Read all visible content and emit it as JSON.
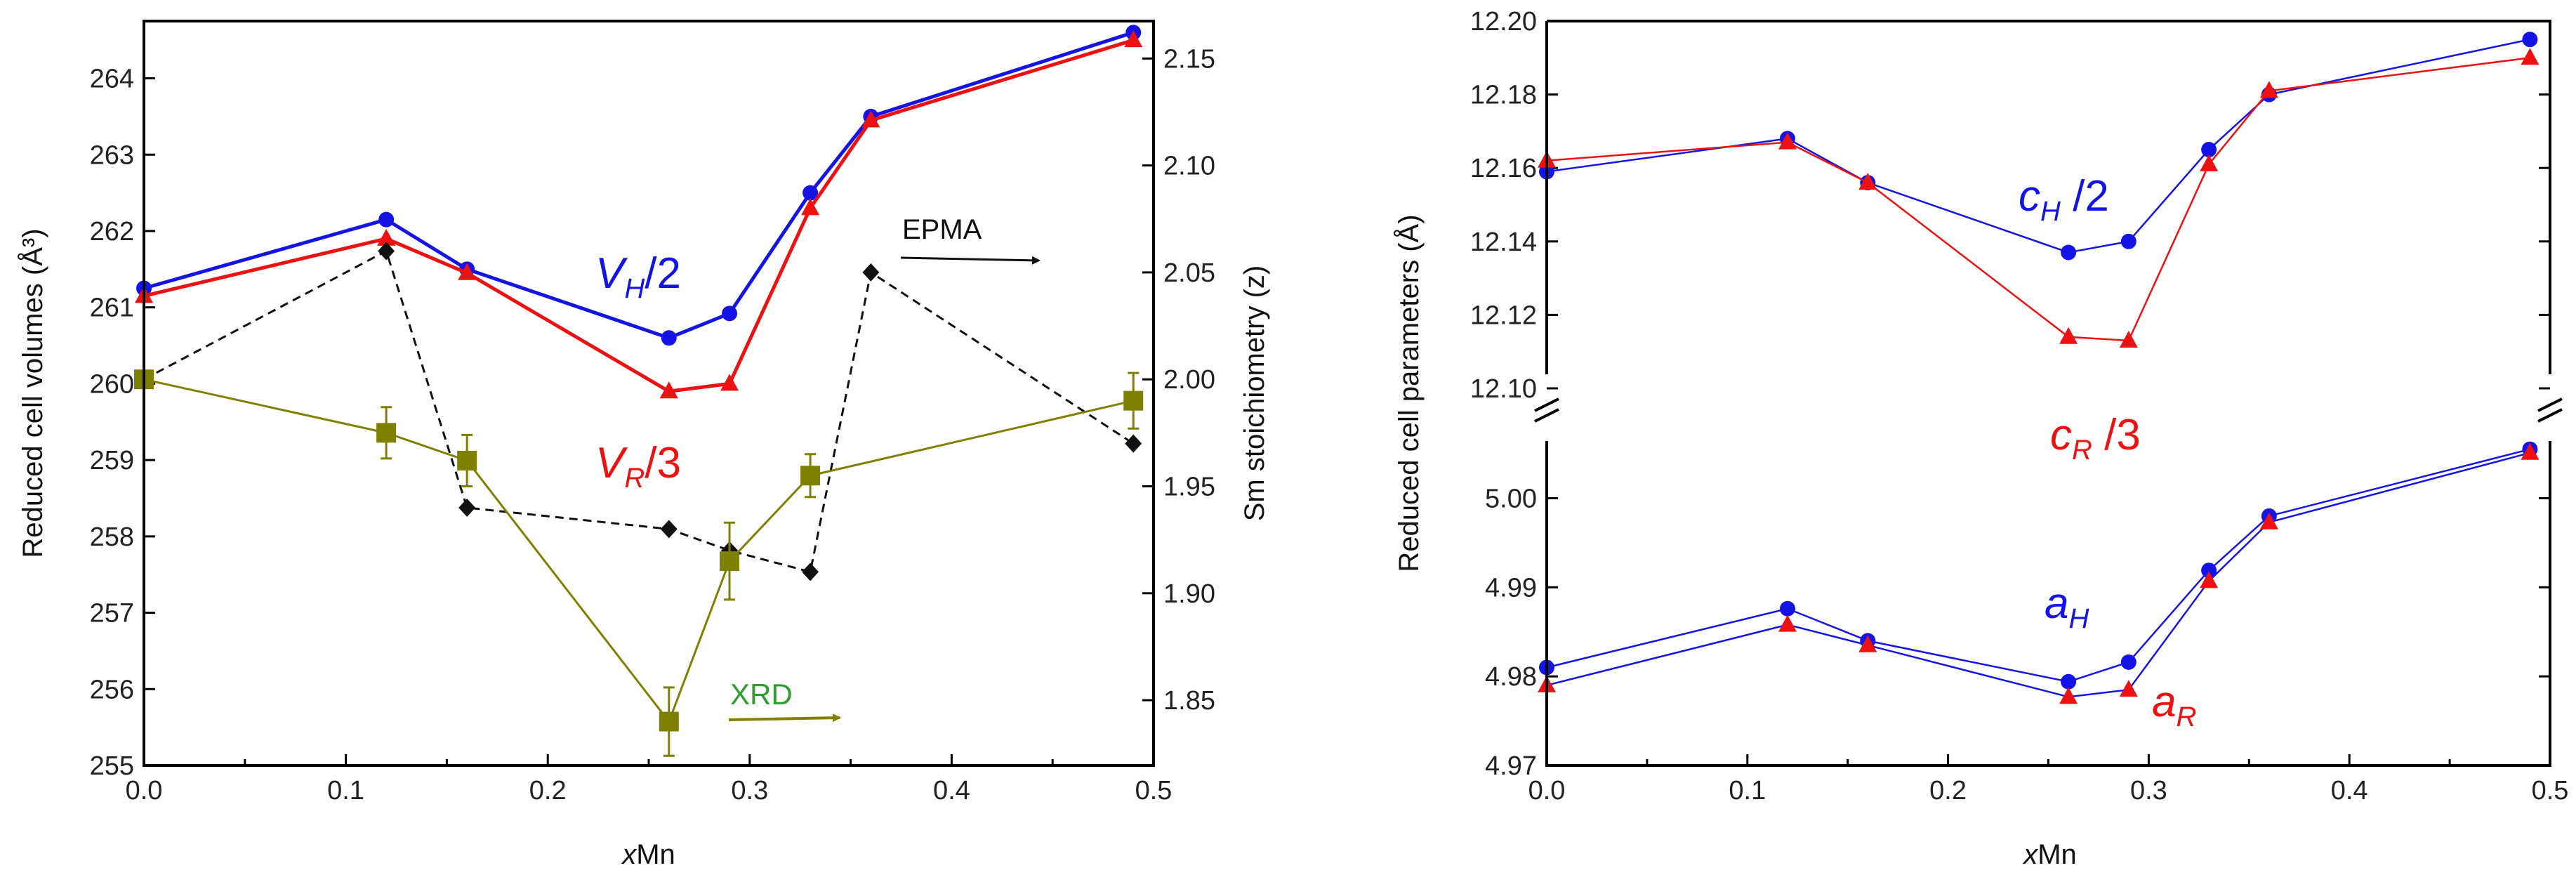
{
  "chart_data": [
    {
      "type": "line",
      "title": "",
      "xlabel": "xMn",
      "xlabel_italic": "x",
      "xlabel_rest": "Mn",
      "ylabel": "Reduced cell volumes (Å³)",
      "ylabel2": "Sm stoichiometry (z)",
      "xlim": [
        0,
        0.5
      ],
      "ylim": [
        255,
        264.75
      ],
      "ylim2": [
        1.8195,
        2.1675
      ],
      "xticks": [
        "0.0",
        "0.1",
        "0.2",
        "0.3",
        "0.4",
        "0.5"
      ],
      "yticks": [
        "255",
        "256",
        "257",
        "258",
        "259",
        "260",
        "261",
        "262",
        "263",
        "264"
      ],
      "yticks2": [
        "1.85",
        "1.90",
        "1.95",
        "2.00",
        "2.05",
        "2.10",
        "2.15"
      ],
      "series": [
        {
          "name": "V_H/2",
          "color": "#1414e6",
          "marker": "circle",
          "axis": "left",
          "x": [
            0,
            0.12,
            0.16,
            0.26,
            0.29,
            0.33,
            0.36,
            0.49
          ],
          "y": [
            261.25,
            262.15,
            261.5,
            260.6,
            260.92,
            262.5,
            263.5,
            264.6
          ]
        },
        {
          "name": "V_R/3",
          "color": "#ee1111",
          "marker": "triangle",
          "axis": "left",
          "x": [
            0,
            0.12,
            0.16,
            0.26,
            0.29,
            0.33,
            0.36,
            0.49
          ],
          "y": [
            261.15,
            261.9,
            261.45,
            259.9,
            260.0,
            262.3,
            263.45,
            264.5
          ]
        },
        {
          "name": "EPMA",
          "color": "#111111",
          "marker": "diamond",
          "dashed": true,
          "axis": "right",
          "x": [
            0,
            0.12,
            0.16,
            0.26,
            0.29,
            0.33,
            0.36,
            0.49
          ],
          "y": [
            2.0,
            2.06,
            1.94,
            1.93,
            1.92,
            1.91,
            2.05,
            1.97
          ]
        },
        {
          "name": "XRD",
          "color": "#808000",
          "marker": "square",
          "axis": "right",
          "x": [
            0,
            0.12,
            0.16,
            0.26,
            0.29,
            0.33,
            0.49
          ],
          "y": [
            2.0,
            1.975,
            1.962,
            1.84,
            1.915,
            1.955,
            1.99
          ],
          "err": [
            0,
            0.012,
            0.012,
            0.016,
            0.018,
            0.01,
            0.013
          ]
        }
      ],
      "annotations": [
        {
          "text": "V",
          "sub": "H",
          "suffix": "/2",
          "color": "#1414e6"
        },
        {
          "text": "V",
          "sub": "R",
          "suffix": "/3",
          "color": "#ee1111"
        },
        {
          "text": "EPMA",
          "color": "#111111"
        },
        {
          "text": "XRD",
          "color": "#2e9e2e"
        }
      ]
    },
    {
      "type": "line",
      "title": "",
      "xlabel": "xMn",
      "xlabel_italic": "x",
      "xlabel_rest": "Mn",
      "ylabel": "Reduced cell parameters (Å)",
      "xlim": [
        0,
        0.5
      ],
      "ylim_upper": [
        12.1,
        12.2
      ],
      "ylim_lower": [
        4.97,
        5.008
      ],
      "xticks": [
        "0.0",
        "0.1",
        "0.2",
        "0.3",
        "0.4",
        "0.5"
      ],
      "yticks_upper": [
        "12.10",
        "12.12",
        "12.14",
        "12.16",
        "12.18",
        "12.20"
      ],
      "yticks_lower": [
        "4.97",
        "4.98",
        "4.99",
        "5.00"
      ],
      "series": [
        {
          "name": "c_H/2",
          "color": "#1414e6",
          "marker": "circle",
          "panel": "upper",
          "x": [
            0,
            0.12,
            0.16,
            0.26,
            0.29,
            0.33,
            0.36,
            0.49
          ],
          "y": [
            12.159,
            12.168,
            12.156,
            12.137,
            12.14,
            12.165,
            12.18,
            12.195
          ]
        },
        {
          "name": "c_R/3",
          "color": "#ee1111",
          "marker": "triangle",
          "panel": "upper",
          "x": [
            0,
            0.12,
            0.16,
            0.26,
            0.29,
            0.33,
            0.36,
            0.49
          ],
          "y": [
            12.162,
            12.167,
            12.156,
            12.114,
            12.113,
            12.161,
            12.181,
            12.19
          ]
        },
        {
          "name": "a_H",
          "color": "#1414e6",
          "marker": "circle",
          "panel": "lower",
          "x": [
            0,
            0.12,
            0.16,
            0.26,
            0.29,
            0.33,
            0.36,
            0.49
          ],
          "y": [
            4.981,
            4.9876,
            4.984,
            4.9794,
            4.9816,
            4.9919,
            4.998,
            5.0055
          ]
        },
        {
          "name": "a_R",
          "color": "#ee1111",
          "marker": "triangle",
          "panel": "lower",
          "line_color": "#1414e6",
          "x": [
            0,
            0.12,
            0.16,
            0.26,
            0.29,
            0.33,
            0.36,
            0.49
          ],
          "y": [
            4.979,
            4.9858,
            4.9835,
            4.9777,
            4.9785,
            4.9907,
            4.9973,
            5.0051
          ]
        }
      ],
      "annotations": [
        {
          "text": "c",
          "sub": "H",
          "suffix": " /2",
          "color": "#1414e6"
        },
        {
          "text": "c",
          "sub": "R",
          "suffix": " /3",
          "color": "#ee1111"
        },
        {
          "text": "a",
          "sub": "H",
          "suffix": "",
          "color": "#1414e6"
        },
        {
          "text": "a",
          "sub": "R",
          "suffix": "",
          "color": "#ee1111"
        }
      ]
    }
  ]
}
